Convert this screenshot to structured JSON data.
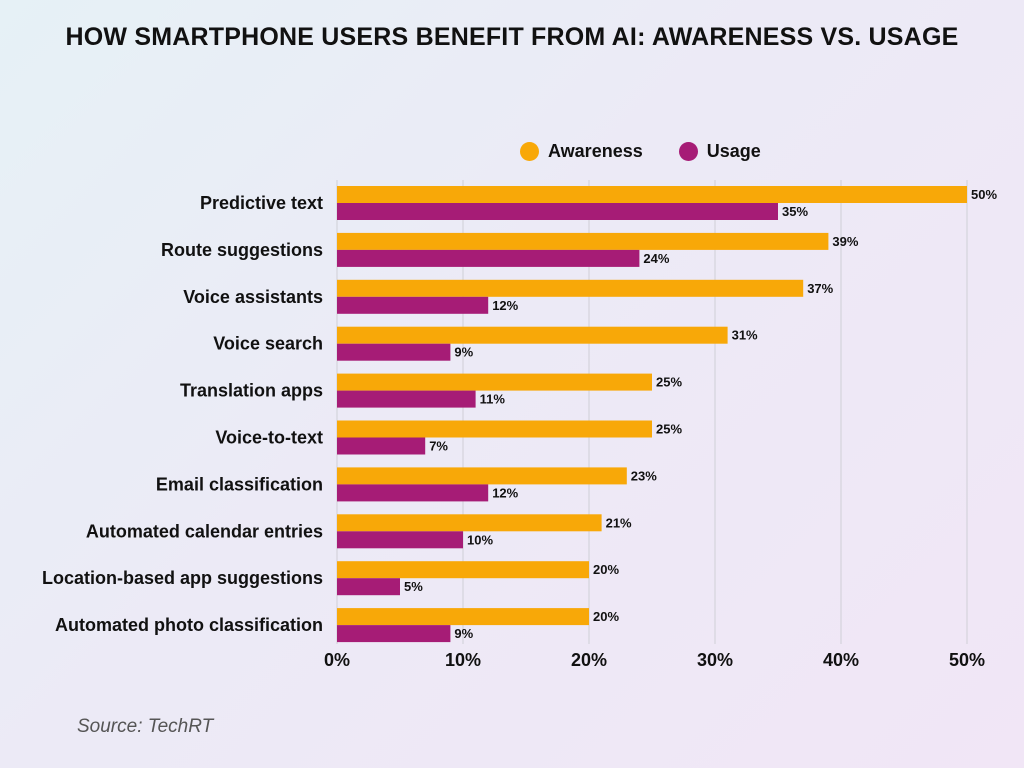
{
  "title": "HOW SMARTPHONE USERS BENEFIT FROM AI: AWARENESS VS. USAGE",
  "source": "Source: TechRT",
  "colors": {
    "awareness": "#f8a808",
    "usage": "#a61c76",
    "grid": "#cfcfd6"
  },
  "chart_data": {
    "type": "bar",
    "orientation": "horizontal",
    "title": "HOW SMARTPHONE USERS BENEFIT FROM AI: AWARENESS VS. USAGE",
    "categories": [
      "Predictive text",
      "Route suggestions",
      "Voice assistants",
      "Voice search",
      "Translation apps",
      "Voice-to-text",
      "Email classification",
      "Automated calendar entries",
      "Location-based app suggestions",
      "Automated photo classification"
    ],
    "series": [
      {
        "name": "Awareness",
        "values": [
          50,
          39,
          37,
          31,
          25,
          25,
          23,
          21,
          20,
          20
        ]
      },
      {
        "name": "Usage",
        "values": [
          35,
          24,
          12,
          9,
          11,
          7,
          12,
          10,
          5,
          9
        ]
      }
    ],
    "value_suffix": "%",
    "xlim": [
      0,
      50
    ],
    "xticks": [
      0,
      10,
      20,
      30,
      40,
      50
    ],
    "xtick_labels": [
      "0%",
      "10%",
      "20%",
      "30%",
      "40%",
      "50%"
    ],
    "xlabel": "",
    "ylabel": "",
    "grid": true,
    "legend_position": "top"
  }
}
